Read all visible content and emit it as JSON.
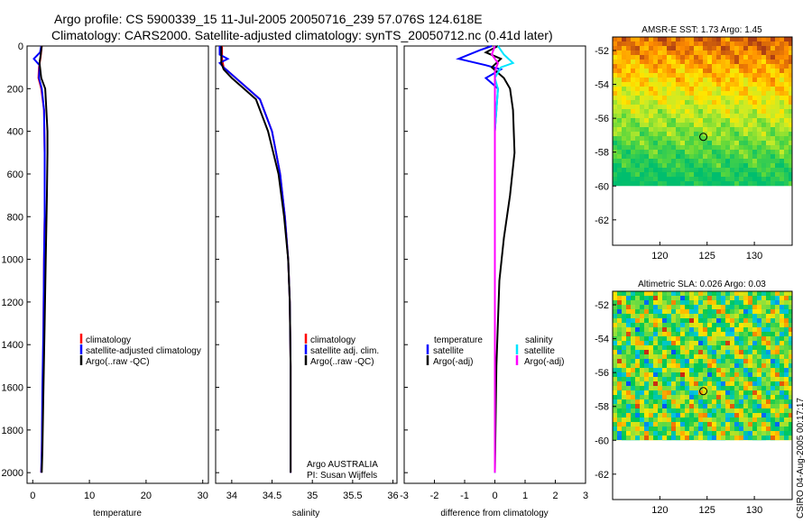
{
  "header": {
    "line1": "Argo profile: CS 5900339_15 11-Jul-2005 20050716_239 57.076S 124.618E",
    "line2": "Climatology: CARS2000. Satellite-adjusted climatology: synTS_20050712.nc (0.41d later)"
  },
  "colors": {
    "climatology": "#ff0000",
    "satellite": "#0000ff",
    "argo": "#000000",
    "sal_sat": "#00e5ff",
    "sal_argo": "#ff00ff"
  },
  "chart_data": [
    {
      "type": "line",
      "id": "temperature",
      "xlabel": "temperature",
      "ylabel": "",
      "xlim": [
        -1,
        31
      ],
      "ylim": [
        2050,
        0
      ],
      "xticks": [
        "0",
        "10",
        "20",
        "30"
      ],
      "yticks": [
        "0",
        "200",
        "400",
        "600",
        "800",
        "1000",
        "1200",
        "1400",
        "1600",
        "1800",
        "2000"
      ],
      "series": [
        {
          "name": "climatology",
          "color": "#ff0000",
          "x": [
            1.6,
            1.4,
            1.1,
            1.0,
            1.5,
            2.0,
            2.1,
            2.1,
            2.0,
            1.9,
            1.8,
            1.6,
            1.5
          ],
          "y": [
            0,
            50,
            100,
            150,
            200,
            300,
            500,
            800,
            1000,
            1300,
            1600,
            1900,
            2000
          ]
        },
        {
          "name": "satellite-adjusted climatology",
          "color": "#0000ff",
          "x": [
            1.5,
            1.3,
            0.2,
            1.2,
            1.1,
            1.6,
            2.0,
            2.1,
            2.1,
            2.0,
            1.9,
            1.7,
            1.6,
            1.5
          ],
          "y": [
            0,
            30,
            60,
            90,
            150,
            200,
            300,
            500,
            800,
            1000,
            1300,
            1600,
            1900,
            2000
          ]
        },
        {
          "name": "Argo(..raw -QC)",
          "color": "#000000",
          "x": [
            1.6,
            1.4,
            1.2,
            1.5,
            2.2,
            2.4,
            2.6,
            2.6,
            2.5,
            2.3,
            2.1,
            1.9,
            1.7,
            1.6
          ],
          "y": [
            0,
            40,
            80,
            150,
            200,
            300,
            400,
            500,
            700,
            1000,
            1300,
            1600,
            1900,
            2000
          ]
        }
      ],
      "legend": [
        "climatology",
        "satellite-adjusted climatology",
        "Argo(..raw -QC)"
      ]
    },
    {
      "type": "line",
      "id": "salinity",
      "xlabel": "salinity",
      "ylabel": "",
      "xlim": [
        33.8,
        36.05
      ],
      "ylim": [
        2050,
        0
      ],
      "xticks": [
        "34",
        "34.5",
        "35",
        "35.5",
        "36"
      ],
      "series": [
        {
          "name": "climatology",
          "color": "#ff0000",
          "x": [
            33.88,
            33.88,
            33.9,
            34.05,
            34.2,
            34.35,
            34.5,
            34.6,
            34.66,
            34.7,
            34.72,
            34.73,
            34.73,
            34.73
          ],
          "y": [
            0,
            60,
            100,
            150,
            200,
            250,
            400,
            600,
            800,
            1000,
            1200,
            1500,
            1800,
            2000
          ]
        },
        {
          "name": "satellite adj. clim.",
          "color": "#0000ff",
          "x": [
            33.85,
            33.85,
            33.95,
            33.85,
            33.9,
            34.05,
            34.2,
            34.35,
            34.5,
            34.6,
            34.66,
            34.7,
            34.72,
            34.73,
            34.73,
            34.73
          ],
          "y": [
            0,
            40,
            60,
            80,
            100,
            150,
            200,
            250,
            400,
            600,
            800,
            1000,
            1200,
            1500,
            1800,
            2000
          ]
        },
        {
          "name": "Argo(..raw -QC)",
          "color": "#000000",
          "x": [
            33.87,
            33.87,
            33.9,
            34.0,
            34.15,
            34.3,
            34.45,
            34.58,
            34.65,
            34.7,
            34.72,
            34.73,
            34.73
          ],
          "y": [
            0,
            80,
            110,
            150,
            200,
            250,
            400,
            600,
            800,
            1000,
            1200,
            1500,
            2000
          ]
        }
      ],
      "legend": [
        "climatology",
        "satellite adj. clim.",
        "Argo(..raw -QC)"
      ],
      "annotations": [
        "Argo AUSTRALIA",
        "PI: Susan Wijffels"
      ]
    },
    {
      "type": "line",
      "id": "difference",
      "xlabel": "difference from climatology",
      "ylabel": "",
      "xlim": [
        -3,
        3
      ],
      "ylim": [
        2050,
        0
      ],
      "xticks": [
        "-3",
        "-2",
        "-1",
        "0",
        "1",
        "2",
        "3"
      ],
      "series": [
        {
          "name": "temperature satellite",
          "color": "#0000ff",
          "x": [
            -0.1,
            -0.5,
            -1.2,
            -0.3,
            0.2,
            -0.3,
            0.1,
            0.0,
            0.0,
            0.0,
            0.0
          ],
          "y": [
            0,
            20,
            60,
            90,
            110,
            150,
            200,
            400,
            800,
            1400,
            2000
          ]
        },
        {
          "name": "temperature Argo(-adj)",
          "color": "#000000",
          "x": [
            0.1,
            -0.3,
            0.2,
            -0.1,
            0.3,
            0.5,
            0.6,
            0.65,
            0.5,
            0.3,
            0.15,
            0.05,
            0.0
          ],
          "y": [
            0,
            30,
            60,
            100,
            150,
            200,
            300,
            500,
            700,
            900,
            1100,
            1500,
            2000
          ]
        },
        {
          "name": "salinity satellite",
          "color": "#00e5ff",
          "x": [
            0.1,
            0.3,
            0.6,
            0.2,
            0.0,
            0.1,
            0.0,
            0.0,
            0.0
          ],
          "y": [
            0,
            40,
            80,
            100,
            150,
            200,
            400,
            1000,
            2000
          ]
        },
        {
          "name": "salinity Argo(-adj)",
          "color": "#ff00ff",
          "x": [
            0.0,
            -0.1,
            0.1,
            0.0,
            0.0,
            0.0
          ],
          "y": [
            0,
            40,
            80,
            120,
            200,
            2000
          ]
        }
      ],
      "legend_left": {
        "heading": "temperature",
        "items": [
          "satellite",
          "Argo(-adj)"
        ]
      },
      "legend_right": {
        "heading": "salinity",
        "items": [
          "satellite",
          "Argo(-adj)"
        ]
      }
    },
    {
      "type": "heatmap",
      "id": "sst",
      "title": "AMSR-E SST: 1.73 Argo: 1.45",
      "xticks": [
        "120",
        "125",
        "130"
      ],
      "yticks": [
        "-52",
        "-54",
        "-56",
        "-58",
        "-60",
        "-62"
      ],
      "xlim": [
        115,
        134
      ],
      "ylim": [
        -63.5,
        -51.2
      ],
      "data_ylim": [
        -60,
        -51.2
      ],
      "marker": {
        "lon": 124.6,
        "lat": -57.1
      }
    },
    {
      "type": "heatmap",
      "id": "sla",
      "title": "Altimetric SLA: 0.026 Argo: 0.03",
      "xticks": [
        "120",
        "125",
        "130"
      ],
      "yticks": [
        "-52",
        "-54",
        "-56",
        "-58",
        "-60",
        "-62"
      ],
      "xlim": [
        115,
        134
      ],
      "ylim": [
        -63.5,
        -51.2
      ],
      "data_ylim": [
        -60,
        -51.2
      ],
      "marker": {
        "lon": 124.6,
        "lat": -57.1
      }
    }
  ],
  "credit": "CSIRO 04-Aug-2005 00:17:17"
}
